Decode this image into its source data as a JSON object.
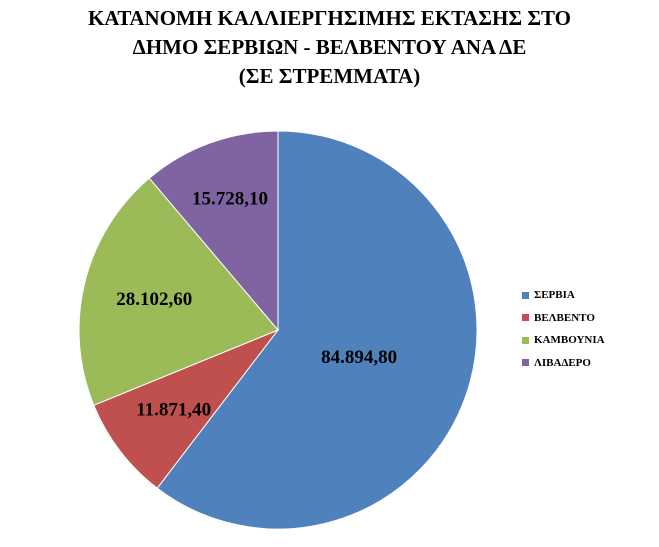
{
  "chart_data": {
    "type": "pie",
    "title_lines": [
      "ΚΑΤΑΝΟΜΗ ΚΑΛΛΙΕΡΓΗΣΙΜΗΣ ΕΚΤΑΣΗΣ ΣΤΟ",
      "ΔΗΜΟ ΣΕΡΒΙΩΝ - ΒΕΛΒΕΝΤΟΥ ΑΝΑ ΔΕ",
      "(ΣΕ ΣΤΡΕΜΜΑΤΑ)"
    ],
    "categories": [
      "ΣΕΡΒΙΑ",
      "ΒΕΛΒΕΝΤΟ",
      "ΚΑΜΒΟΥΝΙΑ",
      "ΛΙΒΑΔΕΡΟ"
    ],
    "values": [
      84894.8,
      11871.4,
      28102.6,
      15728.1
    ],
    "data_labels": [
      "84.894,80",
      "11.871,40",
      "28.102,60",
      "15.728,10"
    ],
    "colors": [
      "#4F81BD",
      "#C0504D",
      "#9BBB59",
      "#8064A2"
    ],
    "start_angle": "12 o'clock",
    "direction": "clockwise",
    "legend_position": "right"
  }
}
